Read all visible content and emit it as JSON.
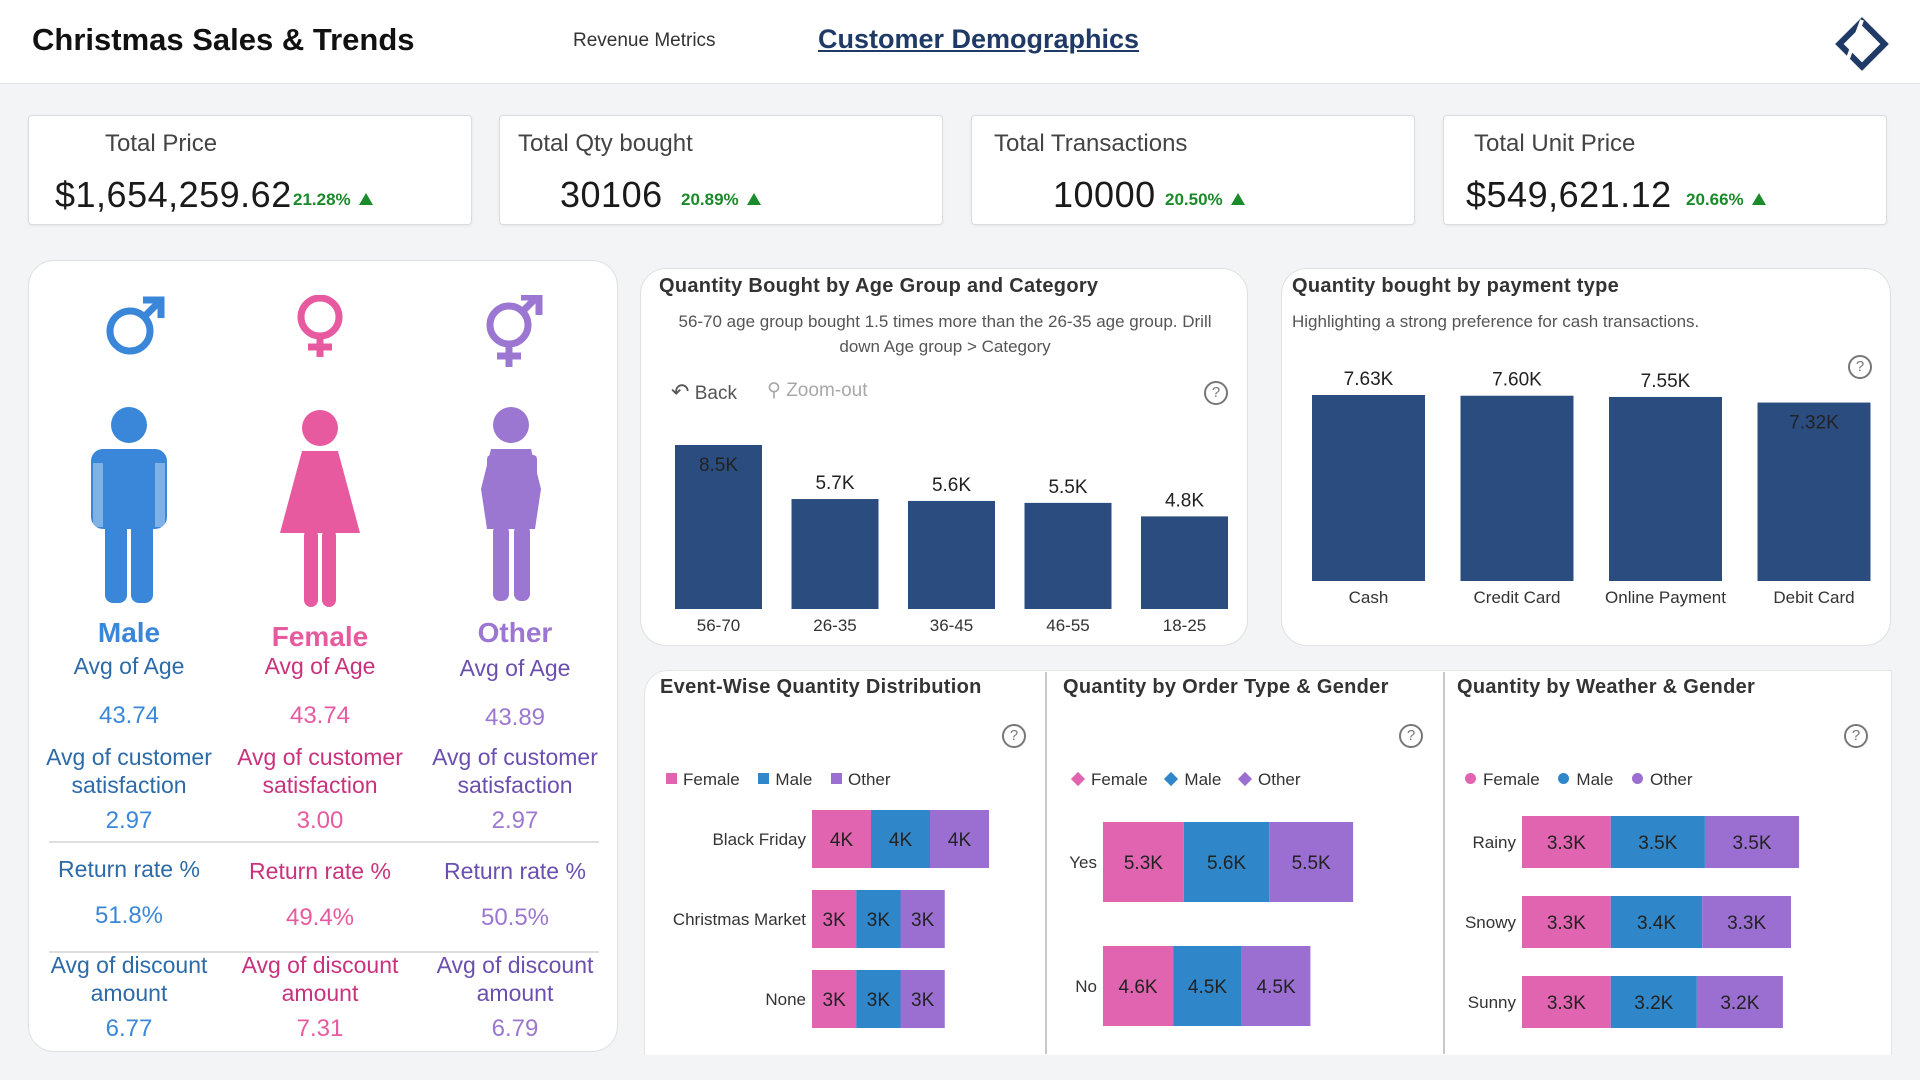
{
  "header": {
    "title": "Christmas Sales & Trends",
    "tabs": [
      {
        "label": "Revenue Metrics",
        "active": false
      },
      {
        "label": "Customer Demographics",
        "active": true
      }
    ],
    "logo_icon": "diamond-logo-icon"
  },
  "kpis": [
    {
      "title": "Total Price",
      "value": "$1,654,259.62",
      "change": "21.28%",
      "trend": "up"
    },
    {
      "title": "Total Qty bought",
      "value": "30106",
      "change": "20.89%",
      "trend": "up"
    },
    {
      "title": "Total Transactions",
      "value": "10000",
      "change": "20.50%",
      "trend": "up"
    },
    {
      "title": "Total Unit Price",
      "value": "$549,621.12",
      "change": "20.66%",
      "trend": "up"
    }
  ],
  "demographics": {
    "genders": [
      {
        "name": "Male",
        "color": "#3a87d9",
        "icon": "male-symbol-icon",
        "figure": "male-figure-icon",
        "age_label": "Avg of Age",
        "age": "43.74",
        "sat_label": "Avg of customer satisfaction",
        "sat": "2.97",
        "return_label": "Return rate %",
        "return_rate": "51.8%",
        "discount_label": "Avg of discount amount",
        "discount": "6.77"
      },
      {
        "name": "Female",
        "color": "#e85a9f",
        "icon": "female-symbol-icon",
        "figure": "female-figure-icon",
        "age_label": "Avg of Age",
        "age": "43.74",
        "sat_label": "Avg of customer satisfaction",
        "sat": "3.00",
        "return_label": "Return rate %",
        "return_rate": "49.4%",
        "discount_label": "Avg of discount amount",
        "discount": "7.31"
      },
      {
        "name": "Other",
        "color": "#9b77d1",
        "icon": "transgender-symbol-icon",
        "figure": "other-figure-icon",
        "age_label": "Avg of Age",
        "age": "43.89",
        "sat_label": "Avg of customer satisfaction",
        "sat": "2.97",
        "return_label": "Return rate %",
        "return_rate": "50.5%",
        "discount_label": "Avg of discount amount",
        "discount": "6.79"
      }
    ]
  },
  "age_chart": {
    "title": "Quantity Bought by Age Group and Category",
    "subtitle_line1": "56-70 age group bought 1.5 times more than the 26-35 age group. Drill",
    "subtitle_line2": "down Age group > Category",
    "back_label": "Back",
    "zoom_label": "Zoom-out"
  },
  "payment_chart": {
    "title": "Quantity bought by payment type",
    "subtitle": "Highlighting a strong preference for cash transactions."
  },
  "event_chart": {
    "title": "Event-Wise Quantity Distribution"
  },
  "order_chart": {
    "title": "Quantity by Order Type & Gender"
  },
  "weather_chart": {
    "title": "Quantity by Weather & Gender"
  },
  "legend": {
    "female": "Female",
    "male": "Male",
    "other": "Other"
  },
  "colors": {
    "navy": "#2b4c7e",
    "female": "#e064b0",
    "male": "#2f86c8",
    "other": "#9b6fd1",
    "up": "#1a8a2a"
  },
  "chart_data": [
    {
      "type": "bar",
      "title": "Quantity Bought by Age Group and Category",
      "categories": [
        "56-70",
        "26-35",
        "36-45",
        "46-55",
        "18-25"
      ],
      "values": [
        8500,
        5700,
        5600,
        5500,
        4800
      ],
      "labels": [
        "8.5K",
        "5.7K",
        "5.6K",
        "5.5K",
        "4.8K"
      ]
    },
    {
      "type": "bar",
      "title": "Quantity bought by payment type",
      "categories": [
        "Cash",
        "Credit Card",
        "Online Payment",
        "Debit Card"
      ],
      "values": [
        7630,
        7600,
        7550,
        7320
      ],
      "labels": [
        "7.63K",
        "7.60K",
        "7.55K",
        "7.32K"
      ]
    },
    {
      "type": "bar",
      "orientation": "horizontal",
      "stacked": true,
      "title": "Event-Wise Quantity Distribution",
      "categories": [
        "Black Friday",
        "Christmas Market",
        "None"
      ],
      "series": [
        {
          "name": "Female",
          "values": [
            4000,
            3000,
            3000
          ],
          "labels": [
            "4K",
            "3K",
            "3K"
          ]
        },
        {
          "name": "Male",
          "values": [
            4000,
            3000,
            3000
          ],
          "labels": [
            "4K",
            "3K",
            "3K"
          ]
        },
        {
          "name": "Other",
          "values": [
            4000,
            3000,
            3000
          ],
          "labels": [
            "4K",
            "3K",
            "3K"
          ]
        }
      ]
    },
    {
      "type": "bar",
      "orientation": "horizontal",
      "stacked": true,
      "title": "Quantity by Order Type & Gender",
      "categories": [
        "Yes",
        "No"
      ],
      "series": [
        {
          "name": "Female",
          "values": [
            5300,
            4600
          ],
          "labels": [
            "5.3K",
            "4.6K"
          ]
        },
        {
          "name": "Male",
          "values": [
            5600,
            4500
          ],
          "labels": [
            "5.6K",
            "4.5K"
          ]
        },
        {
          "name": "Other",
          "values": [
            5500,
            4500
          ],
          "labels": [
            "5.5K",
            "4.5K"
          ]
        }
      ]
    },
    {
      "type": "bar",
      "orientation": "horizontal",
      "stacked": true,
      "title": "Quantity by Weather & Gender",
      "categories": [
        "Rainy",
        "Snowy",
        "Sunny"
      ],
      "series": [
        {
          "name": "Female",
          "values": [
            3300,
            3300,
            3300
          ],
          "labels": [
            "3.3K",
            "3.3K",
            "3.3K"
          ]
        },
        {
          "name": "Male",
          "values": [
            3500,
            3400,
            3200
          ],
          "labels": [
            "3.5K",
            "3.4K",
            "3.2K"
          ]
        },
        {
          "name": "Other",
          "values": [
            3500,
            3300,
            3200
          ],
          "labels": [
            "3.5K",
            "3.3K",
            "3.2K"
          ]
        }
      ]
    }
  ]
}
